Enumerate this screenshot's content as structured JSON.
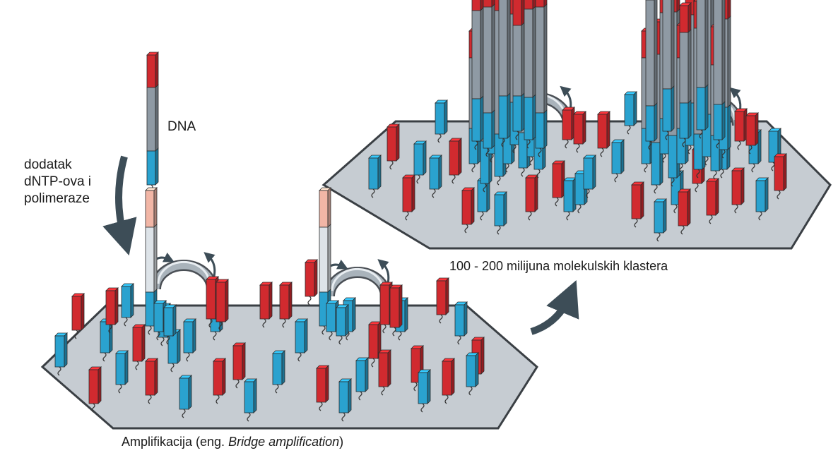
{
  "labels": {
    "dna": "DNA",
    "step_lines": [
      "dodatak",
      "dNTP-ova i",
      "polimeraze"
    ],
    "caption_bottom_prefix": "Amplifikacija (eng. ",
    "caption_bottom_italic": "Bridge amplification",
    "caption_bottom_suffix": ")",
    "caption_top": "100 - 200 milijuna molekulskih klastera"
  },
  "colors": {
    "red": "#d12a2f",
    "blue": "#2aa2cf",
    "gray": "#8f9aa4",
    "plate": "#c6ccd2",
    "plate_edge": "#3a3f44",
    "arrow": "#3d4d57",
    "pale_red": "#f2b6a6",
    "pale_gray": "#dde3e8"
  }
}
